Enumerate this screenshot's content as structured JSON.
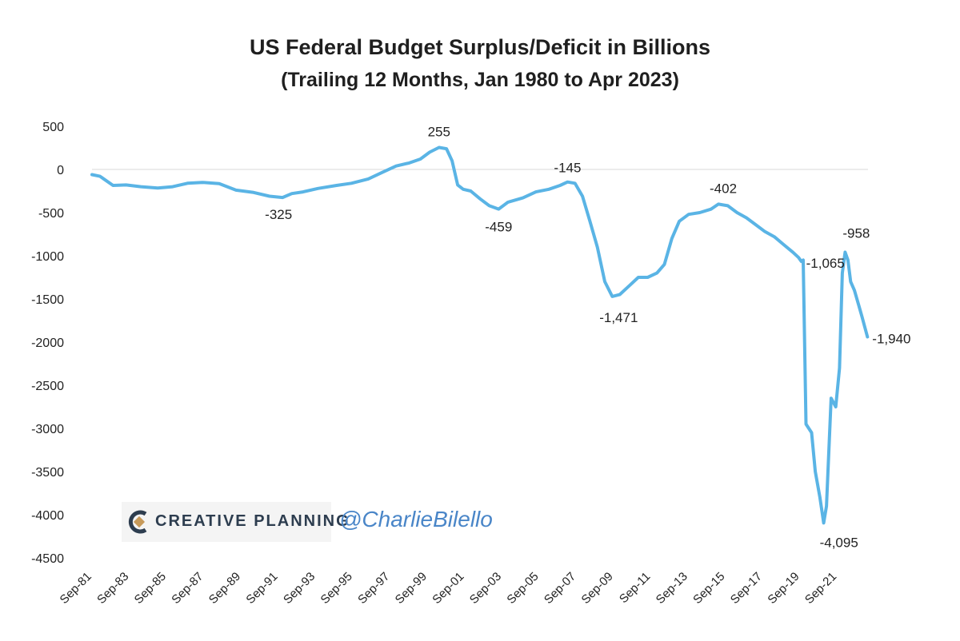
{
  "chart_data": {
    "type": "line",
    "title": "US Federal Budget Surplus/Deficit in Billions",
    "subtitle": "(Trailing  12 Months, Jan 1980 to Apr 2023)",
    "xlabel": "",
    "ylabel": "",
    "ylim": [
      -4500,
      500
    ],
    "yticks": [
      500,
      0,
      -500,
      -1000,
      -1500,
      -2000,
      -2500,
      -3000,
      -3500,
      -4000,
      -4500
    ],
    "ytick_labels": [
      "500",
      "0",
      "-500",
      "-1000",
      "-1500",
      "-2000",
      "-2500",
      "-3000",
      "-3500",
      "-4000",
      "-4500"
    ],
    "xlim": [
      1981.67,
      2023.33
    ],
    "xtick_labels": [
      "Sep-81",
      "Sep-83",
      "Sep-85",
      "Sep-87",
      "Sep-89",
      "Sep-91",
      "Sep-93",
      "Sep-95",
      "Sep-97",
      "Sep-99",
      "Sep-01",
      "Sep-03",
      "Sep-05",
      "Sep-07",
      "Sep-09",
      "Sep-11",
      "Sep-13",
      "Sep-15",
      "Sep-17",
      "Sep-19",
      "Sep-21"
    ],
    "xtick_positions": [
      1981.67,
      1983.67,
      1985.67,
      1987.67,
      1989.67,
      1991.67,
      1993.67,
      1995.67,
      1997.67,
      1999.67,
      2001.67,
      2003.67,
      2005.67,
      2007.67,
      2009.67,
      2011.67,
      2013.67,
      2015.67,
      2017.67,
      2019.67,
      2021.67
    ],
    "gridlines": [
      "0"
    ],
    "series": [
      {
        "name": "Budget Surplus/Deficit (TTM, $B)",
        "color": "#5ab4e5",
        "x": [
          1981.67,
          1982.1,
          1982.8,
          1983.5,
          1984.3,
          1985.2,
          1986.0,
          1986.8,
          1987.6,
          1988.5,
          1989.4,
          1990.3,
          1991.2,
          1991.9,
          1992.4,
          1993.0,
          1993.8,
          1994.8,
          1995.6,
          1996.5,
          1997.3,
          1998.0,
          1998.7,
          1999.3,
          1999.8,
          2000.3,
          2000.7,
          2001.0,
          2001.3,
          2001.6,
          2002.0,
          2002.5,
          2003.0,
          2003.5,
          2004.0,
          2004.8,
          2005.5,
          2006.2,
          2006.8,
          2007.2,
          2007.6,
          2008.0,
          2008.4,
          2008.8,
          2009.2,
          2009.6,
          2010.0,
          2010.5,
          2011.0,
          2011.5,
          2012.0,
          2012.4,
          2012.8,
          2013.2,
          2013.7,
          2014.3,
          2014.9,
          2015.3,
          2015.8,
          2016.3,
          2016.8,
          2017.3,
          2017.8,
          2018.3,
          2018.8,
          2019.3,
          2019.6,
          2019.75,
          2019.85,
          2020.0,
          2020.3,
          2020.5,
          2020.75,
          2020.95,
          2021.1,
          2021.35,
          2021.6,
          2021.8,
          2021.95,
          2022.1,
          2022.25,
          2022.4,
          2022.6,
          2022.8,
          2023.0,
          2023.3
        ],
        "y": [
          -60,
          -80,
          -185,
          -180,
          -200,
          -215,
          -200,
          -160,
          -150,
          -165,
          -240,
          -265,
          -310,
          -325,
          -280,
          -260,
          -220,
          -185,
          -160,
          -110,
          -30,
          40,
          75,
          120,
          200,
          255,
          240,
          100,
          -180,
          -230,
          -250,
          -340,
          -420,
          -459,
          -380,
          -330,
          -260,
          -230,
          -185,
          -145,
          -160,
          -310,
          -600,
          -900,
          -1300,
          -1471,
          -1450,
          -1350,
          -1250,
          -1250,
          -1200,
          -1100,
          -800,
          -600,
          -520,
          -500,
          -460,
          -402,
          -420,
          -500,
          -560,
          -640,
          -720,
          -780,
          -870,
          -960,
          -1020,
          -1065,
          -1050,
          -2950,
          -3050,
          -3500,
          -3800,
          -4095,
          -3900,
          -2650,
          -2750,
          -2300,
          -1200,
          -958,
          -1050,
          -1300,
          -1400,
          -1550,
          -1700,
          -1940
        ]
      }
    ],
    "annotations": [
      {
        "text": "255",
        "x": 2000.3,
        "y": 255
      },
      {
        "text": "-325",
        "x": 1991.9,
        "y": -325
      },
      {
        "text": "-459",
        "x": 2003.5,
        "y": -459
      },
      {
        "text": "-145",
        "x": 2007.2,
        "y": -145
      },
      {
        "text": "-1,471",
        "x": 2009.6,
        "y": -1471
      },
      {
        "text": "-402",
        "x": 2015.3,
        "y": -402
      },
      {
        "text": "-1,065",
        "x": 2019.75,
        "y": -1065
      },
      {
        "text": "-958",
        "x": 2022.1,
        "y": -958
      },
      {
        "text": "-4,095",
        "x": 2020.95,
        "y": -4095
      },
      {
        "text": "-1,940",
        "x": 2023.3,
        "y": -1940
      }
    ]
  },
  "watermark": {
    "brand": "CREATIVE PLANNING",
    "handle": "@CharlieBilello"
  }
}
